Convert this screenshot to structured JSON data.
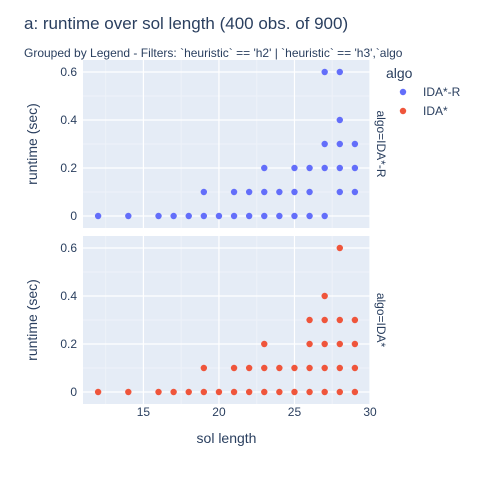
{
  "chart_data": {
    "type": "scatter",
    "title": "a: runtime   over sol length (400 obs. of 900)",
    "subtitle": "Grouped by Legend - Filters: `heuristic` == 'h2' | `heuristic` == 'h3',`algo",
    "xlabel": "sol length",
    "ylabel": "runtime (sec)",
    "xlim": [
      11,
      30
    ],
    "ylim": [
      -0.05,
      0.65
    ],
    "x_ticks": [
      15,
      20,
      25,
      30
    ],
    "y_ticks": [
      0,
      0.2,
      0.4,
      0.6
    ],
    "grid": true,
    "legend": {
      "title": "algo",
      "placement": "top-right"
    },
    "facet_label_prefix": "algo=",
    "series": [
      {
        "name": "IDA*-R",
        "color": "#636efa",
        "facet": "IDA*-R",
        "points": [
          [
            12,
            0
          ],
          [
            14,
            0
          ],
          [
            16,
            0
          ],
          [
            17,
            0
          ],
          [
            18,
            0
          ],
          [
            19,
            0
          ],
          [
            20,
            0
          ],
          [
            21,
            0
          ],
          [
            22,
            0
          ],
          [
            23,
            0
          ],
          [
            24,
            0
          ],
          [
            25,
            0
          ],
          [
            26,
            0
          ],
          [
            27,
            0
          ],
          [
            19,
            0.1
          ],
          [
            21,
            0.1
          ],
          [
            22,
            0.1
          ],
          [
            23,
            0.1
          ],
          [
            24,
            0.1
          ],
          [
            25,
            0.1
          ],
          [
            26,
            0.1
          ],
          [
            28,
            0.1
          ],
          [
            29,
            0.1
          ],
          [
            23,
            0.2
          ],
          [
            25,
            0.2
          ],
          [
            26,
            0.2
          ],
          [
            27,
            0.2
          ],
          [
            28,
            0.2
          ],
          [
            29,
            0.2
          ],
          [
            27,
            0.3
          ],
          [
            28,
            0.3
          ],
          [
            29,
            0.3
          ],
          [
            28,
            0.4
          ],
          [
            27,
            0.6
          ],
          [
            28,
            0.6
          ]
        ]
      },
      {
        "name": "IDA*",
        "color": "#ef553b",
        "facet": "IDA*",
        "points": [
          [
            12,
            0
          ],
          [
            14,
            0
          ],
          [
            16,
            0
          ],
          [
            17,
            0
          ],
          [
            18,
            0
          ],
          [
            19,
            0
          ],
          [
            20,
            0
          ],
          [
            21,
            0
          ],
          [
            22,
            0
          ],
          [
            23,
            0
          ],
          [
            24,
            0
          ],
          [
            25,
            0
          ],
          [
            26,
            0
          ],
          [
            27,
            0
          ],
          [
            28,
            0
          ],
          [
            29,
            0
          ],
          [
            19,
            0.1
          ],
          [
            21,
            0.1
          ],
          [
            22,
            0.1
          ],
          [
            23,
            0.1
          ],
          [
            24,
            0.1
          ],
          [
            25,
            0.1
          ],
          [
            26,
            0.1
          ],
          [
            27,
            0.1
          ],
          [
            28,
            0.1
          ],
          [
            29,
            0.1
          ],
          [
            23,
            0.2
          ],
          [
            26,
            0.2
          ],
          [
            27,
            0.2
          ],
          [
            28,
            0.2
          ],
          [
            29,
            0.2
          ],
          [
            26,
            0.3
          ],
          [
            27,
            0.3
          ],
          [
            28,
            0.3
          ],
          [
            29,
            0.3
          ],
          [
            27,
            0.4
          ],
          [
            28,
            0.6
          ]
        ]
      }
    ]
  }
}
